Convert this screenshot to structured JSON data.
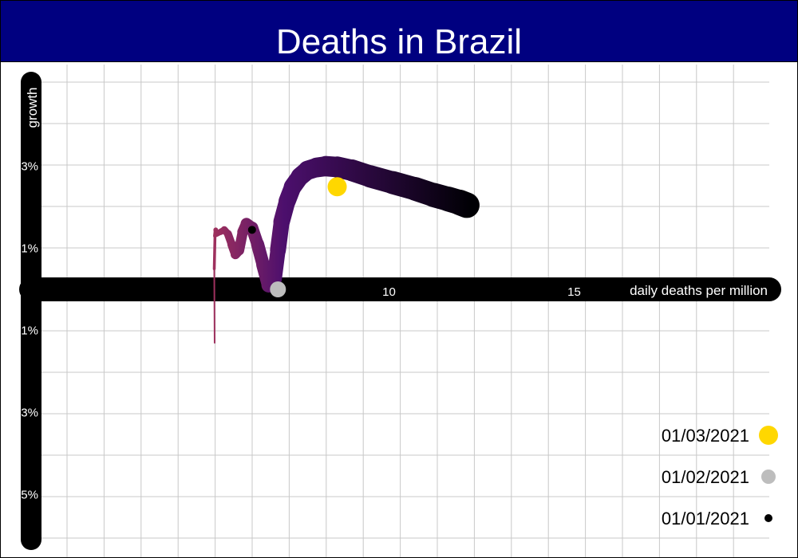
{
  "chart_data": {
    "type": "line",
    "title": "Deaths in Brazil",
    "xlabel": "daily deaths per million",
    "ylabel": "growth",
    "x_tick_labels": [
      "10",
      "15"
    ],
    "y_tick_labels": [
      "3%",
      "1%",
      "-1%",
      "-3%",
      "-5%"
    ],
    "x_ticks": [
      10,
      15
    ],
    "y_ticks": [
      3,
      1,
      -1,
      -3,
      -5
    ],
    "grid": true,
    "legend_position": "bottom-right",
    "series": [
      {
        "x": [
          5.29,
          5.28,
          5.3,
          5.32,
          5.35,
          5.45,
          5.55,
          5.65,
          5.75,
          5.85,
          5.95,
          6.05,
          6.15,
          6.3,
          6.45,
          6.6,
          6.75,
          6.9,
          7.0,
          7.1,
          7.25,
          7.4,
          7.6,
          7.8,
          8.05,
          8.3,
          8.6,
          9.0,
          9.5,
          10.1,
          10.7,
          11.2,
          11.6,
          11.9,
          12.1
        ],
        "y": [
          -1.3,
          0.5,
          1.3,
          1.45,
          1.35,
          1.4,
          1.45,
          1.35,
          1.1,
          0.85,
          0.95,
          1.4,
          1.6,
          1.5,
          1.1,
          0.6,
          0.1,
          0.25,
          0.95,
          1.65,
          2.15,
          2.5,
          2.75,
          2.9,
          2.97,
          3.0,
          2.98,
          2.9,
          2.75,
          2.6,
          2.45,
          2.3,
          2.2,
          2.12,
          2.05
        ]
      }
    ],
    "markers": [
      {
        "label": "01/01/2021",
        "x": 6.3,
        "y": 1.45,
        "color": "#000000"
      },
      {
        "label": "01/02/2021",
        "x": 7.0,
        "y": 0.0,
        "color": "#bdbdbd"
      },
      {
        "label": "01/03/2021",
        "x": 8.6,
        "y": 2.5,
        "color": "#ffd700"
      }
    ],
    "colors": {
      "title_bar": "#000080",
      "axis": "#000000",
      "grid": "#c8c8c8",
      "path_gradient": [
        "#fcfd9e",
        "#f6b33b",
        "#e56b2c",
        "#b63a59",
        "#4c0f6d",
        "#000004"
      ]
    }
  }
}
